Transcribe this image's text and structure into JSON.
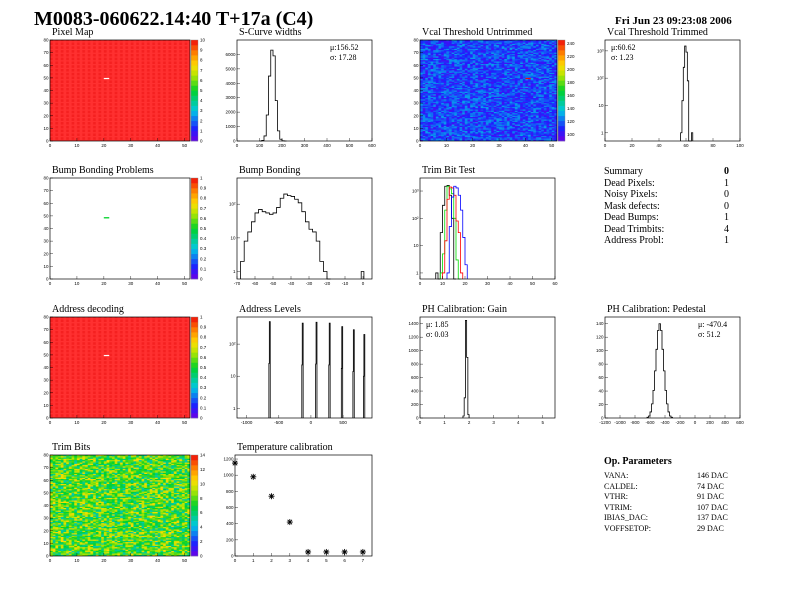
{
  "header": {
    "title": "M0083-060622.14:40 T+17a (C4)",
    "date": "Fri Jun 23 09:23:08 2006"
  },
  "summary": {
    "title": "Summary",
    "title_value": "0",
    "rows": [
      {
        "label": "Dead Pixels:",
        "value": "1"
      },
      {
        "label": "Noisy Pixels:",
        "value": "0"
      },
      {
        "label": "Mask defects:",
        "value": "0"
      },
      {
        "label": "Dead Bumps:",
        "value": "1"
      },
      {
        "label": "Dead Trimbits:",
        "value": "4"
      },
      {
        "label": "Address Probl:",
        "value": "1"
      }
    ]
  },
  "op_parameters": {
    "title": "Op. Parameters",
    "rows": [
      {
        "label": "VANA:",
        "value": "146 DAC"
      },
      {
        "label": "CALDEL:",
        "value": "74 DAC"
      },
      {
        "label": "VTHR:",
        "value": "91 DAC"
      },
      {
        "label": "VTRIM:",
        "value": "107 DAC"
      },
      {
        "label": "IBIAS_DAC:",
        "value": "137 DAC"
      },
      {
        "label": "VOFFSETOP:",
        "value": "29 DAC"
      }
    ]
  },
  "colors": {
    "frame": "#000000",
    "hist_line": "#000000",
    "red_map": "#ff2020",
    "trim_black": "#000000",
    "trim_red": "#ff0000",
    "trim_green": "#00dd00",
    "trim_blue": "#0000ff"
  },
  "chart_data": [
    {
      "id": "pixel_map",
      "type": "heatmap",
      "title": "Pixel Map",
      "xlim": [
        0,
        52
      ],
      "ylim": [
        0,
        80
      ],
      "xticks": [
        0,
        10,
        20,
        30,
        40,
        50
      ],
      "yticks": [
        0,
        10,
        20,
        30,
        40,
        50,
        60,
        70,
        80
      ],
      "zlim": [
        0,
        10
      ],
      "zticks": [
        0,
        1,
        2,
        3,
        4,
        5,
        6,
        7,
        8,
        9,
        10
      ],
      "fill": "uniform_max",
      "special_pixels": [
        {
          "x": 20,
          "y": 49,
          "z": 0
        }
      ]
    },
    {
      "id": "scurve",
      "type": "bar",
      "title": "S-Curve widths",
      "xlim": [
        0,
        600
      ],
      "ylim": [
        0,
        7000
      ],
      "xticks": [
        0,
        100,
        200,
        300,
        400,
        500,
        600
      ],
      "yticks": [
        0,
        1000,
        2000,
        3000,
        4000,
        5000,
        6000
      ],
      "stats": {
        "mean": "μ:156.52",
        "sigma": "σ: 17.28"
      },
      "series": [
        {
          "x0": 100,
          "bw": 10,
          "values": [
            0,
            40,
            350,
            1800,
            4500,
            6300,
            5900,
            2800,
            700,
            120,
            15,
            0
          ]
        }
      ]
    },
    {
      "id": "vcal_untrimmed",
      "type": "heatmap",
      "title": "Vcal Threshold Untrimmed",
      "xlim": [
        0,
        52
      ],
      "ylim": [
        0,
        80
      ],
      "xticks": [
        0,
        10,
        20,
        30,
        40,
        50
      ],
      "yticks": [
        0,
        10,
        20,
        30,
        40,
        50,
        60,
        70,
        80
      ],
      "zlim": [
        90,
        245
      ],
      "zticks": [
        100,
        120,
        140,
        160,
        180,
        200,
        220,
        240
      ],
      "fill": "noise_low",
      "special_pixels": [
        {
          "x": 40,
          "y": 49,
          "z": 245
        }
      ]
    },
    {
      "id": "vcal_trimmed",
      "type": "bar",
      "title": "Vcal Threshold Trimmed",
      "xlim": [
        0,
        100
      ],
      "ylim": [
        0.5,
        2500
      ],
      "log": true,
      "xticks": [
        0,
        20,
        40,
        60,
        80,
        100
      ],
      "yticks": [
        1,
        10,
        100,
        1000
      ],
      "yticklabels": [
        "1",
        "10",
        "10²",
        "10³"
      ],
      "stats": {
        "mean": "μ:60.62",
        "sigma": "σ: 1.23"
      },
      "series": [
        {
          "x0": 56,
          "bw": 1,
          "values": [
            1,
            15,
            250,
            1500,
            900,
            80,
            0,
            0,
            1
          ]
        }
      ]
    },
    {
      "id": "bump_problems",
      "type": "heatmap",
      "title": "Bump Bonding Problems",
      "xlim": [
        0,
        52
      ],
      "ylim": [
        0,
        80
      ],
      "xticks": [
        0,
        10,
        20,
        30,
        40,
        50
      ],
      "yticks": [
        0,
        10,
        20,
        30,
        40,
        50,
        60,
        70,
        80
      ],
      "zlim": [
        0,
        1
      ],
      "zticks": [
        0,
        0.1,
        0.2,
        0.3,
        0.4,
        0.5,
        0.6,
        0.7,
        0.8,
        0.9,
        1
      ],
      "fill": "empty",
      "special_pixels": [
        {
          "x": 20,
          "y": 48,
          "z": 0.5
        }
      ]
    },
    {
      "id": "bump_bonding",
      "type": "bar",
      "title": "Bump Bonding",
      "xlim": [
        -70,
        5
      ],
      "ylim": [
        0.6,
        600
      ],
      "log": true,
      "xticks": [
        -70,
        -60,
        -50,
        -40,
        -30,
        -20,
        -10,
        0
      ],
      "yticks": [
        1,
        10,
        100
      ],
      "yticklabels": [
        "1",
        "10",
        "10²"
      ],
      "series": [
        {
          "x0": -68,
          "bw": 2,
          "values": [
            2,
            8,
            15,
            30,
            55,
            70,
            60,
            55,
            50,
            55,
            80,
            150,
            200,
            180,
            170,
            140,
            110,
            60,
            30,
            18,
            15,
            8,
            2,
            1,
            0
          ]
        },
        {
          "x0": -1,
          "bw": 1.5,
          "values": [
            1
          ]
        }
      ]
    },
    {
      "id": "trim_bit_test",
      "type": "bar",
      "title": "Trim Bit Test",
      "xlim": [
        0,
        60
      ],
      "ylim": [
        0.6,
        3000
      ],
      "log": true,
      "xticks": [
        0,
        10,
        20,
        30,
        40,
        50,
        60
      ],
      "yticks": [
        1,
        10,
        100,
        1000
      ],
      "yticklabels": [
        "1",
        "10",
        "10²",
        "10³"
      ],
      "series": [
        {
          "color": "#000000",
          "x0": 7,
          "bw": 1,
          "values": [
            1,
            0,
            30,
            300,
            1500,
            1600,
            700,
            100,
            0
          ]
        },
        {
          "color": "#00dd00",
          "x0": 9,
          "bw": 1,
          "values": [
            1,
            5,
            200,
            1500,
            1200,
            800,
            100,
            3,
            0
          ]
        },
        {
          "color": "#ff0000",
          "x0": 10,
          "bw": 1,
          "values": [
            1,
            15,
            500,
            1400,
            1300,
            700,
            80,
            30,
            1
          ]
        },
        {
          "color": "#0000ff",
          "x0": 12,
          "bw": 1,
          "values": [
            1,
            50,
            600,
            1500,
            1300,
            700,
            200,
            20,
            2
          ]
        }
      ]
    },
    {
      "id": "address_decoding",
      "type": "heatmap",
      "title": "Address decoding",
      "xlim": [
        0,
        52
      ],
      "ylim": [
        0,
        80
      ],
      "xticks": [
        0,
        10,
        20,
        30,
        40,
        50
      ],
      "yticks": [
        0,
        10,
        20,
        30,
        40,
        50,
        60,
        70,
        80
      ],
      "zlim": [
        0,
        1
      ],
      "zticks": [
        0,
        0.1,
        0.2,
        0.3,
        0.4,
        0.5,
        0.6,
        0.7,
        0.8,
        0.9,
        1
      ],
      "fill": "uniform_max",
      "special_pixels": [
        {
          "x": 20,
          "y": 49,
          "z": 0
        }
      ]
    },
    {
      "id": "address_levels",
      "type": "bar",
      "title": "Address Levels",
      "xlim": [
        -1150,
        950
      ],
      "ylim": [
        0.5,
        700
      ],
      "log": true,
      "xticks": [
        -1000,
        -500,
        0,
        500
      ],
      "yticks": [
        1,
        10,
        100
      ],
      "yticklabels": [
        "1",
        "10",
        "10²"
      ],
      "peaks": [
        {
          "x": -640,
          "h": 500
        },
        {
          "x": -128,
          "h": 450
        },
        {
          "x": 87,
          "h": 480
        },
        {
          "x": 292,
          "h": 450
        },
        {
          "x": 487,
          "h": 350
        },
        {
          "x": 667,
          "h": 280
        },
        {
          "x": 831,
          "h": 200
        }
      ]
    },
    {
      "id": "ph_gain",
      "type": "bar",
      "title": "PH Calibration: Gain",
      "xlim": [
        0,
        5.5
      ],
      "ylim": [
        0,
        1500
      ],
      "xticks": [
        0,
        1,
        2,
        3,
        4,
        5
      ],
      "yticks": [
        0,
        200,
        400,
        600,
        800,
        1000,
        1200,
        1400
      ],
      "stats": {
        "mean": "μ: 1.85",
        "sigma": "σ: 0.03"
      },
      "series": [
        {
          "x0": 1.75,
          "bw": 0.05,
          "values": [
            30,
            300,
            1450,
            900,
            50
          ]
        }
      ]
    },
    {
      "id": "ph_pedestal",
      "type": "bar",
      "title": "PH Calibration: Pedestal",
      "xlim": [
        -1200,
        600
      ],
      "ylim": [
        0,
        150
      ],
      "xticks": [
        -1200,
        -1000,
        -800,
        -600,
        -400,
        -200,
        0,
        200,
        400,
        600
      ],
      "yticks": [
        0,
        20,
        40,
        60,
        80,
        100,
        120,
        140
      ],
      "stats": {
        "mean": "μ: -470.4",
        "sigma": "σ: 51.2"
      },
      "series": [
        {
          "x0": -640,
          "bw": 20,
          "values": [
            1,
            3,
            9,
            21,
            41,
            70,
            102,
            130,
            140,
            130,
            102,
            70,
            41,
            21,
            9,
            3,
            1
          ]
        }
      ]
    },
    {
      "id": "trim_bits",
      "type": "heatmap",
      "title": "Trim Bits",
      "xlim": [
        0,
        52
      ],
      "ylim": [
        0,
        80
      ],
      "xticks": [
        0,
        10,
        20,
        30,
        40,
        50
      ],
      "yticks": [
        0,
        10,
        20,
        30,
        40,
        50,
        60,
        70,
        80
      ],
      "zlim": [
        0,
        14
      ],
      "zticks": [
        0,
        2,
        4,
        6,
        8,
        10,
        12,
        14
      ],
      "fill": "noise_mid",
      "special_pixels": []
    },
    {
      "id": "temperature",
      "type": "scatter",
      "title": "Temperature calibration",
      "xlim": [
        0,
        7.5
      ],
      "ylim": [
        0,
        1250
      ],
      "xticks": [
        0,
        1,
        2,
        3,
        4,
        5,
        6,
        7
      ],
      "yticks": [
        0,
        200,
        400,
        600,
        800,
        1000,
        1200
      ],
      "points": [
        [
          0,
          1150
        ],
        [
          1,
          980
        ],
        [
          2,
          740
        ],
        [
          3,
          420
        ],
        [
          4,
          50
        ],
        [
          5,
          50
        ],
        [
          6,
          50
        ],
        [
          7,
          50
        ]
      ]
    }
  ]
}
